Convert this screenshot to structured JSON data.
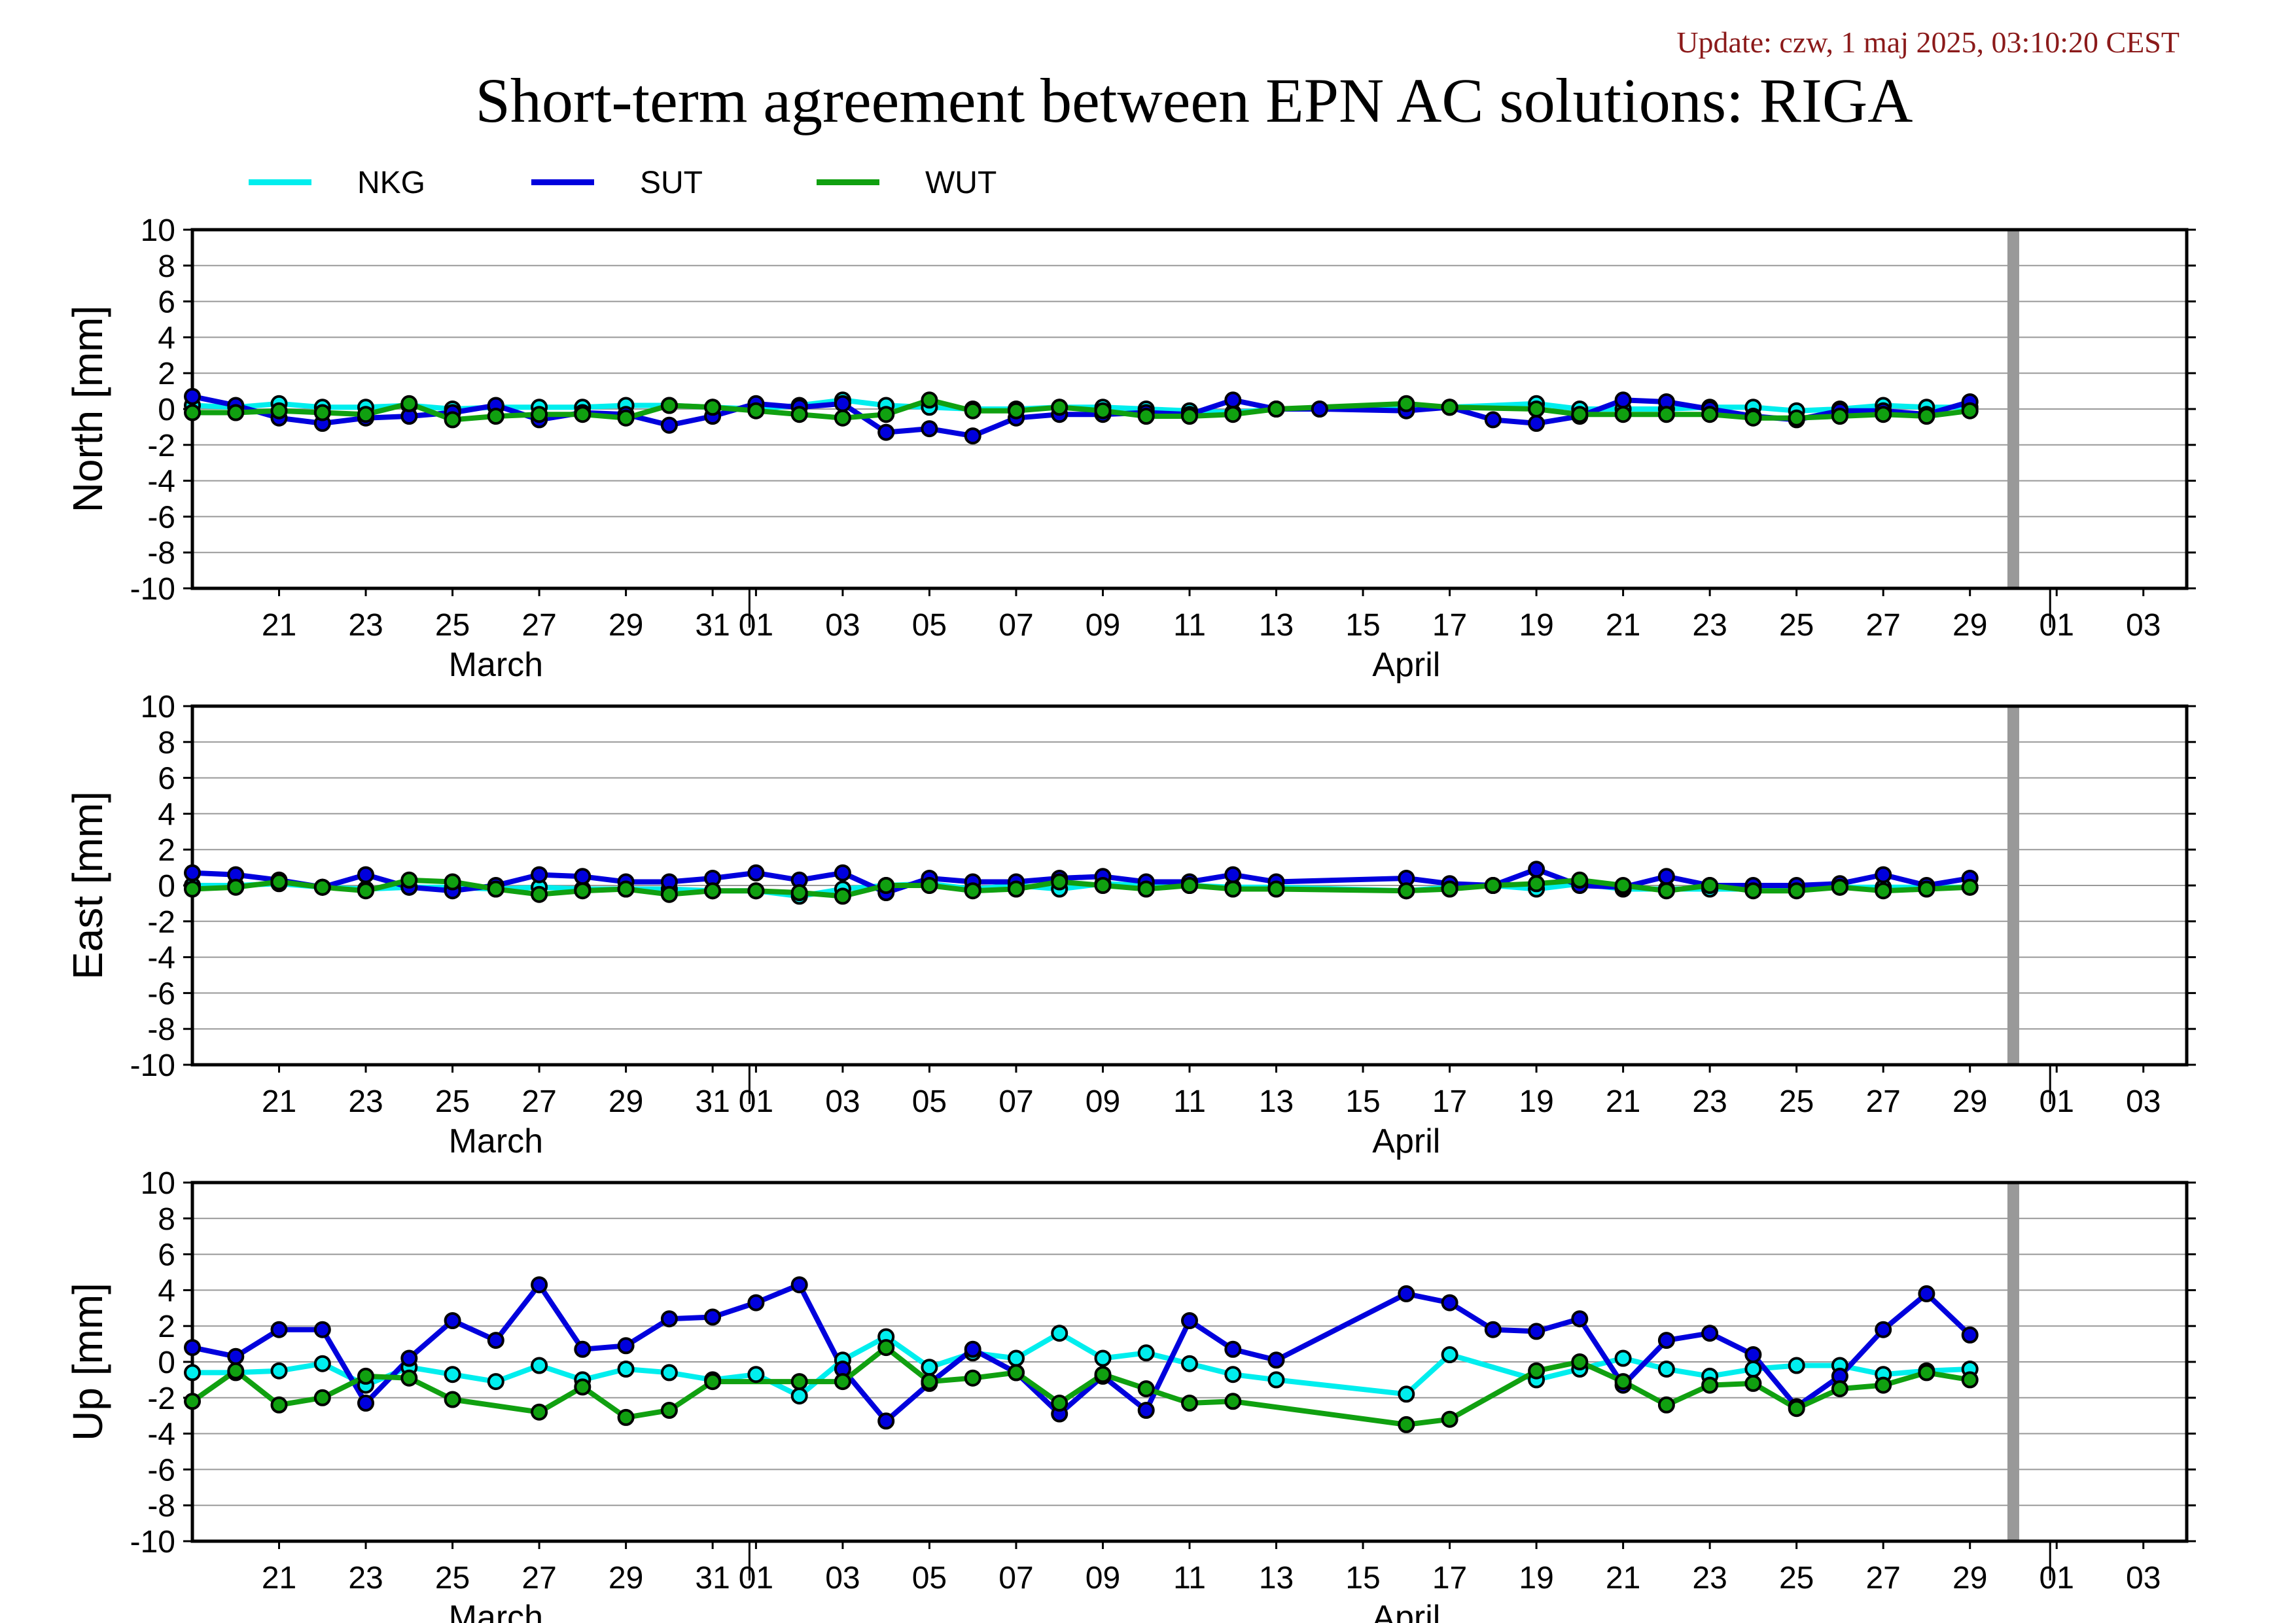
{
  "update": "Update: czw, 1 maj 2025, 03:10:20 CEST",
  "chart_data": {
    "type": "line",
    "title": "Short-term agreement between EPN AC solutions: RIGA",
    "legend": {
      "placement": "top-left",
      "entries": [
        "NKG",
        "SUT",
        "WUT"
      ]
    },
    "colors": {
      "NKG": "#00eeee",
      "SUT": "#0000dd",
      "WUT": "#10a010",
      "marker_edge": "#000000",
      "end_marker": "#999999"
    },
    "x_axis": {
      "type": "date",
      "range": [
        "2025-03-19",
        "2025-05-04"
      ],
      "tick_labels": [
        "21",
        "23",
        "25",
        "27",
        "29",
        "31",
        "01",
        "03",
        "05",
        "07",
        "09",
        "11",
        "13",
        "15",
        "17",
        "19",
        "21",
        "23",
        "25",
        "27",
        "29",
        "01",
        "03"
      ],
      "month_labels": [
        "March",
        "April"
      ]
    },
    "end_marker_date": "2025-04-30",
    "grid": true,
    "panels": [
      {
        "ylabel": "North [mm]",
        "ylim": [
          -10,
          10
        ],
        "yticks": [
          10,
          8,
          6,
          4,
          2,
          0,
          -2,
          -4,
          -6,
          -8,
          -10
        ],
        "series": [
          {
            "name": "NKG",
            "x": [
              "2025-03-19",
              "2025-03-20",
              "2025-03-21",
              "2025-03-22",
              "2025-03-23",
              "2025-03-24",
              "2025-03-25",
              "2025-03-26",
              "2025-03-27",
              "2025-03-28",
              "2025-03-29",
              "2025-03-30",
              "2025-03-31",
              "2025-04-01",
              "2025-04-02",
              "2025-04-03",
              "2025-04-04",
              "2025-04-05",
              "2025-04-06",
              "2025-04-07",
              "2025-04-08",
              "2025-04-09",
              "2025-04-10",
              "2025-04-11",
              "2025-04-12",
              "2025-04-13",
              "2025-04-14",
              "2025-04-16",
              "2025-04-17",
              "2025-04-19",
              "2025-04-20",
              "2025-04-21",
              "2025-04-22",
              "2025-04-23",
              "2025-04-24",
              "2025-04-25",
              "2025-04-26",
              "2025-04-27",
              "2025-04-28",
              "2025-04-29"
            ],
            "y": [
              0.2,
              0.1,
              0.3,
              0.1,
              0.1,
              0.2,
              0.0,
              0.1,
              0.1,
              0.1,
              0.2,
              0.2,
              0.1,
              0.0,
              0.2,
              0.5,
              0.2,
              0.1,
              0.0,
              0.0,
              0.1,
              0.1,
              0.0,
              -0.1,
              -0.2,
              0.0,
              0.0,
              0.1,
              0.1,
              0.3,
              0.0,
              0.0,
              0.0,
              0.1,
              0.1,
              -0.1,
              0.0,
              0.2,
              0.1,
              0.1
            ]
          },
          {
            "name": "SUT",
            "x": [
              "2025-03-19",
              "2025-03-20",
              "2025-03-21",
              "2025-03-22",
              "2025-03-23",
              "2025-03-24",
              "2025-03-25",
              "2025-03-26",
              "2025-03-27",
              "2025-03-28",
              "2025-03-29",
              "2025-03-30",
              "2025-03-31",
              "2025-04-01",
              "2025-04-02",
              "2025-04-03",
              "2025-04-04",
              "2025-04-05",
              "2025-04-06",
              "2025-04-07",
              "2025-04-08",
              "2025-04-09",
              "2025-04-10",
              "2025-04-11",
              "2025-04-12",
              "2025-04-13",
              "2025-04-14",
              "2025-04-16",
              "2025-04-17",
              "2025-04-18",
              "2025-04-19",
              "2025-04-20",
              "2025-04-21",
              "2025-04-22",
              "2025-04-23",
              "2025-04-24",
              "2025-04-25",
              "2025-04-26",
              "2025-04-27",
              "2025-04-28",
              "2025-04-29"
            ],
            "y": [
              0.7,
              0.2,
              -0.5,
              -0.8,
              -0.5,
              -0.4,
              -0.2,
              0.2,
              -0.6,
              -0.2,
              -0.3,
              -0.9,
              -0.4,
              0.3,
              0.1,
              0.3,
              -1.3,
              -1.1,
              -1.5,
              -0.5,
              -0.3,
              -0.3,
              -0.2,
              -0.3,
              0.5,
              0.0,
              0.0,
              -0.1,
              0.1,
              -0.6,
              -0.8,
              -0.4,
              0.5,
              0.4,
              0.0,
              -0.4,
              -0.6,
              -0.1,
              -0.1,
              -0.3,
              0.4
            ]
          },
          {
            "name": "WUT",
            "x": [
              "2025-03-19",
              "2025-03-20",
              "2025-03-21",
              "2025-03-22",
              "2025-03-23",
              "2025-03-24",
              "2025-03-25",
              "2025-03-26",
              "2025-03-27",
              "2025-03-28",
              "2025-03-29",
              "2025-03-30",
              "2025-03-31",
              "2025-04-01",
              "2025-04-02",
              "2025-04-03",
              "2025-04-04",
              "2025-04-05",
              "2025-04-06",
              "2025-04-07",
              "2025-04-08",
              "2025-04-09",
              "2025-04-10",
              "2025-04-11",
              "2025-04-12",
              "2025-04-13",
              "2025-04-16",
              "2025-04-17",
              "2025-04-19",
              "2025-04-20",
              "2025-04-21",
              "2025-04-22",
              "2025-04-23",
              "2025-04-24",
              "2025-04-25",
              "2025-04-26",
              "2025-04-27",
              "2025-04-28",
              "2025-04-29"
            ],
            "y": [
              -0.2,
              -0.2,
              -0.1,
              -0.2,
              -0.3,
              0.3,
              -0.6,
              -0.4,
              -0.3,
              -0.3,
              -0.5,
              0.2,
              0.1,
              -0.1,
              -0.3,
              -0.5,
              -0.3,
              0.5,
              -0.1,
              -0.1,
              0.1,
              -0.1,
              -0.4,
              -0.4,
              -0.3,
              0.0,
              0.3,
              0.1,
              0.0,
              -0.3,
              -0.3,
              -0.3,
              -0.3,
              -0.5,
              -0.5,
              -0.4,
              -0.3,
              -0.4,
              -0.1
            ]
          }
        ]
      },
      {
        "ylabel": "East [mm]",
        "ylim": [
          -10,
          10
        ],
        "yticks": [
          10,
          8,
          6,
          4,
          2,
          0,
          -2,
          -4,
          -6,
          -8,
          -10
        ],
        "series": [
          {
            "name": "NKG",
            "x": [
              "2025-03-19",
              "2025-03-20",
              "2025-03-21",
              "2025-03-22",
              "2025-03-23",
              "2025-03-24",
              "2025-03-25",
              "2025-03-26",
              "2025-03-27",
              "2025-03-28",
              "2025-03-29",
              "2025-03-30",
              "2025-03-31",
              "2025-04-01",
              "2025-04-02",
              "2025-04-03",
              "2025-04-04",
              "2025-04-05",
              "2025-04-06",
              "2025-04-07",
              "2025-04-08",
              "2025-04-09",
              "2025-04-10",
              "2025-04-11",
              "2025-04-12",
              "2025-04-13",
              "2025-04-16",
              "2025-04-17",
              "2025-04-18",
              "2025-04-19",
              "2025-04-20",
              "2025-04-21",
              "2025-04-22",
              "2025-04-23",
              "2025-04-24",
              "2025-04-25",
              "2025-04-26",
              "2025-04-27",
              "2025-04-28",
              "2025-04-29"
            ],
            "y": [
              0.0,
              0.0,
              0.1,
              -0.1,
              -0.2,
              -0.1,
              -0.1,
              -0.2,
              -0.1,
              -0.2,
              -0.2,
              -0.2,
              -0.3,
              -0.3,
              -0.6,
              -0.2,
              0.0,
              0.1,
              -0.2,
              0.0,
              -0.2,
              0.1,
              0.0,
              0.0,
              -0.1,
              -0.1,
              -0.3,
              -0.1,
              0.0,
              -0.2,
              0.1,
              -0.2,
              -0.2,
              -0.2,
              -0.2,
              -0.1,
              -0.1,
              -0.1,
              -0.1,
              -0.1
            ]
          },
          {
            "name": "SUT",
            "x": [
              "2025-03-19",
              "2025-03-20",
              "2025-03-21",
              "2025-03-22",
              "2025-03-23",
              "2025-03-24",
              "2025-03-25",
              "2025-03-26",
              "2025-03-27",
              "2025-03-28",
              "2025-03-29",
              "2025-03-30",
              "2025-03-31",
              "2025-04-01",
              "2025-04-02",
              "2025-04-03",
              "2025-04-04",
              "2025-04-05",
              "2025-04-06",
              "2025-04-07",
              "2025-04-08",
              "2025-04-09",
              "2025-04-10",
              "2025-04-11",
              "2025-04-12",
              "2025-04-13",
              "2025-04-16",
              "2025-04-17",
              "2025-04-18",
              "2025-04-19",
              "2025-04-20",
              "2025-04-21",
              "2025-04-22",
              "2025-04-23",
              "2025-04-24",
              "2025-04-25",
              "2025-04-26",
              "2025-04-27",
              "2025-04-28",
              "2025-04-29"
            ],
            "y": [
              0.7,
              0.6,
              0.3,
              -0.1,
              0.6,
              -0.1,
              -0.3,
              0.0,
              0.6,
              0.5,
              0.2,
              0.2,
              0.4,
              0.7,
              0.3,
              0.7,
              -0.4,
              0.4,
              0.2,
              0.2,
              0.4,
              0.5,
              0.2,
              0.2,
              0.6,
              0.2,
              0.4,
              0.1,
              0.0,
              0.9,
              0.0,
              -0.1,
              0.5,
              0.0,
              0.0,
              0.0,
              0.1,
              0.6,
              0.0,
              0.4
            ]
          },
          {
            "name": "WUT",
            "x": [
              "2025-03-19",
              "2025-03-20",
              "2025-03-21",
              "2025-03-22",
              "2025-03-23",
              "2025-03-24",
              "2025-03-25",
              "2025-03-26",
              "2025-03-27",
              "2025-03-28",
              "2025-03-29",
              "2025-03-30",
              "2025-03-31",
              "2025-04-01",
              "2025-04-02",
              "2025-04-03",
              "2025-04-04",
              "2025-04-05",
              "2025-04-06",
              "2025-04-07",
              "2025-04-08",
              "2025-04-09",
              "2025-04-10",
              "2025-04-11",
              "2025-04-12",
              "2025-04-13",
              "2025-04-16",
              "2025-04-17",
              "2025-04-18",
              "2025-04-19",
              "2025-04-20",
              "2025-04-21",
              "2025-04-22",
              "2025-04-23",
              "2025-04-24",
              "2025-04-25",
              "2025-04-26",
              "2025-04-27",
              "2025-04-28",
              "2025-04-29"
            ],
            "y": [
              -0.2,
              -0.1,
              0.2,
              -0.1,
              -0.3,
              0.3,
              0.2,
              -0.2,
              -0.5,
              -0.3,
              -0.2,
              -0.5,
              -0.3,
              -0.3,
              -0.4,
              -0.6,
              0.0,
              0.0,
              -0.3,
              -0.2,
              0.2,
              0.0,
              -0.2,
              0.0,
              -0.2,
              -0.2,
              -0.3,
              -0.2,
              0.0,
              0.1,
              0.3,
              0.0,
              -0.3,
              0.0,
              -0.3,
              -0.3,
              -0.1,
              -0.3,
              -0.2,
              -0.1
            ]
          }
        ]
      },
      {
        "ylabel": "Up [mm]",
        "ylim": [
          -10,
          10
        ],
        "yticks": [
          10,
          8,
          6,
          4,
          2,
          0,
          -2,
          -4,
          -6,
          -8,
          -10
        ],
        "series": [
          {
            "name": "NKG",
            "x": [
              "2025-03-19",
              "2025-03-20",
              "2025-03-21",
              "2025-03-22",
              "2025-03-23",
              "2025-03-24",
              "2025-03-25",
              "2025-03-26",
              "2025-03-27",
              "2025-03-28",
              "2025-03-29",
              "2025-03-30",
              "2025-03-31",
              "2025-04-01",
              "2025-04-02",
              "2025-04-03",
              "2025-04-04",
              "2025-04-05",
              "2025-04-06",
              "2025-04-07",
              "2025-04-08",
              "2025-04-09",
              "2025-04-10",
              "2025-04-11",
              "2025-04-12",
              "2025-04-13",
              "2025-04-16",
              "2025-04-17",
              "2025-04-19",
              "2025-04-20",
              "2025-04-21",
              "2025-04-22",
              "2025-04-23",
              "2025-04-24",
              "2025-04-25",
              "2025-04-26",
              "2025-04-27",
              "2025-04-28",
              "2025-04-29"
            ],
            "y": [
              -0.6,
              -0.6,
              -0.5,
              -0.1,
              -1.3,
              -0.3,
              -0.7,
              -1.1,
              -0.2,
              -1.0,
              -0.4,
              -0.6,
              -1.0,
              -0.7,
              -1.9,
              0.1,
              1.4,
              -0.3,
              0.5,
              0.2,
              1.6,
              0.2,
              0.5,
              -0.1,
              -0.7,
              -1.0,
              -1.8,
              0.4,
              -1.0,
              -0.4,
              0.2,
              -0.4,
              -0.8,
              -0.4,
              -0.2,
              -0.2,
              -0.7,
              -0.5,
              -0.4
            ]
          },
          {
            "name": "SUT",
            "x": [
              "2025-03-19",
              "2025-03-20",
              "2025-03-21",
              "2025-03-22",
              "2025-03-23",
              "2025-03-24",
              "2025-03-25",
              "2025-03-26",
              "2025-03-27",
              "2025-03-28",
              "2025-03-29",
              "2025-03-30",
              "2025-03-31",
              "2025-04-01",
              "2025-04-02",
              "2025-04-03",
              "2025-04-04",
              "2025-04-05",
              "2025-04-06",
              "2025-04-07",
              "2025-04-08",
              "2025-04-09",
              "2025-04-10",
              "2025-04-11",
              "2025-04-12",
              "2025-04-13",
              "2025-04-16",
              "2025-04-17",
              "2025-04-18",
              "2025-04-19",
              "2025-04-20",
              "2025-04-21",
              "2025-04-22",
              "2025-04-23",
              "2025-04-24",
              "2025-04-25",
              "2025-04-26",
              "2025-04-27",
              "2025-04-28",
              "2025-04-29"
            ],
            "y": [
              0.8,
              0.3,
              1.8,
              1.8,
              -2.3,
              0.2,
              2.3,
              1.2,
              4.3,
              0.7,
              0.9,
              2.4,
              2.5,
              3.3,
              4.3,
              -0.4,
              -3.3,
              -1.2,
              0.7,
              -0.6,
              -2.9,
              -0.8,
              -2.7,
              2.3,
              0.7,
              0.1,
              3.8,
              3.3,
              1.8,
              1.7,
              2.4,
              -1.3,
              1.2,
              1.6,
              0.4,
              -2.5,
              -0.8,
              1.8,
              3.8,
              1.5
            ]
          },
          {
            "name": "WUT",
            "x": [
              "2025-03-19",
              "2025-03-20",
              "2025-03-21",
              "2025-03-22",
              "2025-03-23",
              "2025-03-24",
              "2025-03-25",
              "2025-03-27",
              "2025-03-28",
              "2025-03-29",
              "2025-03-30",
              "2025-03-31",
              "2025-04-02",
              "2025-04-03",
              "2025-04-04",
              "2025-04-05",
              "2025-04-06",
              "2025-04-07",
              "2025-04-08",
              "2025-04-09",
              "2025-04-10",
              "2025-04-11",
              "2025-04-12",
              "2025-04-16",
              "2025-04-17",
              "2025-04-19",
              "2025-04-20",
              "2025-04-21",
              "2025-04-22",
              "2025-04-23",
              "2025-04-24",
              "2025-04-25",
              "2025-04-26",
              "2025-04-27",
              "2025-04-28",
              "2025-04-29"
            ],
            "y": [
              -2.2,
              -0.5,
              -2.4,
              -2.0,
              -0.8,
              -0.9,
              -2.1,
              -2.8,
              -1.4,
              -3.1,
              -2.7,
              -1.1,
              -1.1,
              -1.1,
              0.8,
              -1.1,
              -0.9,
              -0.6,
              -2.3,
              -0.7,
              -1.5,
              -2.3,
              -2.2,
              -3.5,
              -3.2,
              -0.5,
              0.0,
              -1.1,
              -2.4,
              -1.3,
              -1.2,
              -2.6,
              -1.5,
              -1.3,
              -0.6,
              -1.0
            ]
          }
        ]
      }
    ]
  }
}
